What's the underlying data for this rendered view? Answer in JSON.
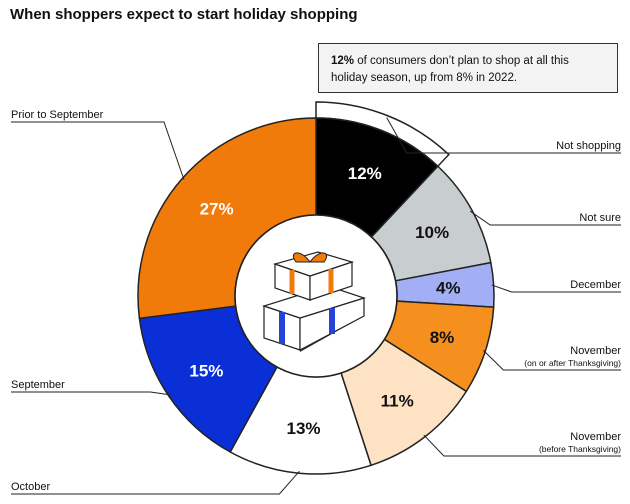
{
  "title": "When shoppers expect to start holiday shopping",
  "callout": {
    "highlight": "12%",
    "text": " of consumers don’t plan to shop at all this holiday season, up from 8% in 2022."
  },
  "chart_data": {
    "type": "pie",
    "title": "When shoppers expect to start holiday shopping",
    "unit": "%",
    "slices": [
      {
        "label": "Not shopping",
        "sublabel": "",
        "value": 12,
        "display": "12%",
        "color": "#000000",
        "text_color": "#ffffff"
      },
      {
        "label": "Not sure",
        "sublabel": "",
        "value": 10,
        "display": "10%",
        "color": "#c8cdd0",
        "text_color": "#111111"
      },
      {
        "label": "December",
        "sublabel": "",
        "value": 4,
        "display": "4%",
        "color": "#a3aff5",
        "text_color": "#111111"
      },
      {
        "label": "November",
        "sublabel": "(on or after Thanksgiving)",
        "value": 8,
        "display": "8%",
        "color": "#f5901e",
        "text_color": "#111111"
      },
      {
        "label": "November",
        "sublabel": "(before Thanksgiving)",
        "value": 11,
        "display": "11%",
        "color": "#fde3c4",
        "text_color": "#111111"
      },
      {
        "label": "October",
        "sublabel": "",
        "value": 13,
        "display": "13%",
        "color": "#ffffff",
        "text_color": "#111111"
      },
      {
        "label": "September",
        "sublabel": "",
        "value": 15,
        "display": "15%",
        "color": "#0a2fd6",
        "text_color": "#ffffff"
      },
      {
        "label": "Prior to September",
        "sublabel": "",
        "value": 27,
        "display": "27%",
        "color": "#f07a0a",
        "text_color": "#ffffff"
      }
    ]
  }
}
